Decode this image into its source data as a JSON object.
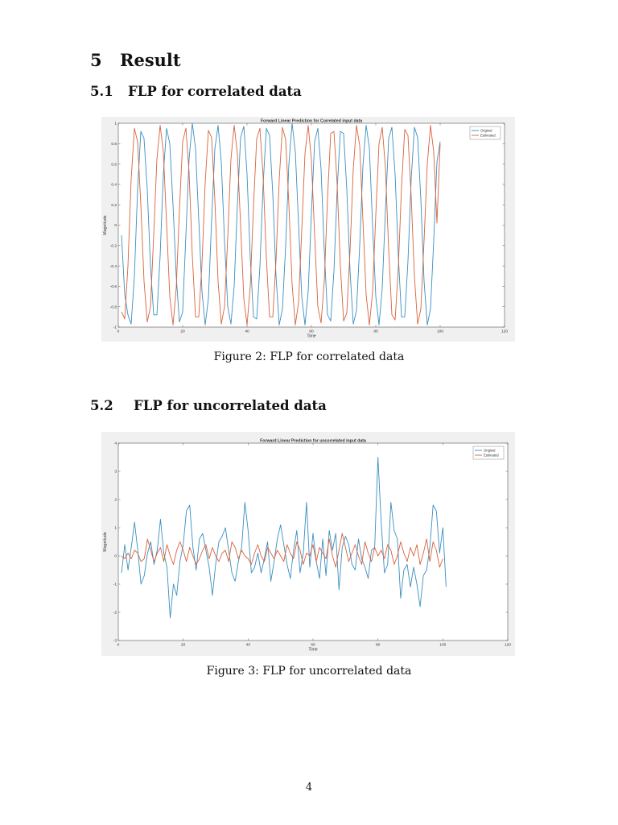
{
  "sections": {
    "main": {
      "number": "5",
      "title": "Result"
    },
    "sub1": {
      "number": "5.1",
      "title": "FLP for correlated data"
    },
    "sub2": {
      "number": "5.2",
      "title": "FLP for uncorrelated data"
    }
  },
  "figures": [
    {
      "caption": "Figure 2: FLP for correlated data"
    },
    {
      "caption": "Figure 3: FLP for uncorrelated data"
    }
  ],
  "page_number": "4",
  "chart_data": [
    {
      "type": "line",
      "title": "Forward Linear Prediction for Correlated input data",
      "xlabel": "Time",
      "ylabel": "Magnitude",
      "xlim": [
        0,
        120
      ],
      "ylim": [
        -1,
        1
      ],
      "xticks": [
        0,
        20,
        40,
        60,
        80,
        100,
        120
      ],
      "yticks": [
        -1,
        -0.8,
        -0.6,
        -0.4,
        -0.2,
        0,
        0.2,
        0.4,
        0.6,
        0.8,
        1
      ],
      "grid": false,
      "legend_position": "top-right",
      "series": [
        {
          "name": "Original",
          "color": "#3a8fc1",
          "x": [
            1,
            2,
            3,
            4,
            5,
            6,
            7,
            8,
            9,
            10,
            11,
            12,
            13,
            14,
            15,
            16,
            17,
            18,
            19,
            20,
            21,
            22,
            23,
            24,
            25,
            26,
            27,
            28,
            29,
            30,
            31,
            32,
            33,
            34,
            35,
            36,
            37,
            38,
            39,
            40,
            41,
            42,
            43,
            44,
            45,
            46,
            47,
            48,
            49,
            50,
            51,
            52,
            53,
            54,
            55,
            56,
            57,
            58,
            59,
            60,
            61,
            62,
            63,
            64,
            65,
            66,
            67,
            68,
            69,
            70,
            71,
            72,
            73,
            74,
            75,
            76,
            77,
            78,
            79,
            80,
            81,
            82,
            83,
            84,
            85,
            86,
            87,
            88,
            89,
            90,
            91,
            92,
            93,
            94,
            95,
            96,
            97,
            98,
            99,
            100
          ],
          "y": [
            -0.1,
            -0.68,
            -0.88,
            -0.97,
            -0.5,
            0.35,
            0.92,
            0.85,
            0.35,
            -0.4,
            -0.88,
            -0.88,
            -0.3,
            0.5,
            0.95,
            0.8,
            0.2,
            -0.5,
            -0.95,
            -0.85,
            -0.1,
            0.65,
            1.0,
            0.75,
            0.05,
            -0.65,
            -0.98,
            -0.72,
            0.05,
            0.75,
            0.98,
            0.62,
            -0.15,
            -0.8,
            -0.97,
            -0.6,
            0.2,
            0.86,
            0.97,
            0.5,
            -0.32,
            -0.9,
            -0.92,
            -0.4,
            0.4,
            0.95,
            0.88,
            0.3,
            -0.5,
            -0.98,
            -0.82,
            -0.2,
            0.6,
            1.0,
            0.72,
            0.02,
            -0.7,
            -0.98,
            -0.65,
            0.12,
            0.82,
            0.95,
            0.55,
            -0.25,
            -0.88,
            -0.94,
            -0.45,
            0.35,
            0.92,
            0.9,
            0.35,
            -0.45,
            -0.97,
            -0.84,
            -0.2,
            0.58,
            0.98,
            0.76,
            0.0,
            -0.7,
            -0.98,
            -0.62,
            0.15,
            0.85,
            0.96,
            0.5,
            -0.3,
            -0.9,
            -0.9,
            -0.35,
            0.45,
            0.96,
            0.86,
            0.25,
            -0.55,
            -0.98,
            -0.82,
            -0.15,
            0.62,
            0.82
          ]
        },
        {
          "name": "Estimated",
          "color": "#d9623b",
          "x": [
            1,
            2,
            3,
            4,
            5,
            6,
            7,
            8,
            9,
            10,
            11,
            12,
            13,
            14,
            15,
            16,
            17,
            18,
            19,
            20,
            21,
            22,
            23,
            24,
            25,
            26,
            27,
            28,
            29,
            30,
            31,
            32,
            33,
            34,
            35,
            36,
            37,
            38,
            39,
            40,
            41,
            42,
            43,
            44,
            45,
            46,
            47,
            48,
            49,
            50,
            51,
            52,
            53,
            54,
            55,
            56,
            57,
            58,
            59,
            60,
            61,
            62,
            63,
            64,
            65,
            66,
            67,
            68,
            69,
            70,
            71,
            72,
            73,
            74,
            75,
            76,
            77,
            78,
            79,
            80,
            81,
            82,
            83,
            84,
            85,
            86,
            87,
            88,
            89,
            90,
            91,
            92,
            93,
            94,
            95,
            96,
            97,
            98,
            99,
            100
          ],
          "y": [
            -0.85,
            -0.92,
            -0.4,
            0.45,
            0.95,
            0.82,
            0.2,
            -0.55,
            -0.95,
            -0.8,
            -0.1,
            0.65,
            0.98,
            0.72,
            0.02,
            -0.7,
            -0.98,
            -0.62,
            0.15,
            0.82,
            0.95,
            0.52,
            -0.3,
            -0.9,
            -0.9,
            -0.38,
            0.42,
            0.93,
            0.86,
            0.25,
            -0.55,
            -0.97,
            -0.8,
            -0.12,
            0.65,
            0.98,
            0.7,
            0.0,
            -0.72,
            -0.98,
            -0.6,
            0.18,
            0.85,
            0.95,
            0.48,
            -0.32,
            -0.9,
            -0.9,
            -0.35,
            0.45,
            0.96,
            0.84,
            0.2,
            -0.58,
            -0.98,
            -0.76,
            -0.05,
            0.7,
            0.98,
            0.64,
            -0.1,
            -0.8,
            -0.96,
            -0.55,
            0.26,
            0.9,
            0.92,
            0.4,
            -0.4,
            -0.94,
            -0.86,
            -0.25,
            0.55,
            0.98,
            0.78,
            0.05,
            -0.68,
            -0.98,
            -0.66,
            0.1,
            0.8,
            0.96,
            0.56,
            -0.24,
            -0.88,
            -0.93,
            -0.42,
            0.38,
            0.94,
            0.88,
            0.28,
            -0.5,
            -0.97,
            -0.82,
            -0.15,
            0.6,
            0.98,
            0.72,
            0.02,
            0.8
          ]
        }
      ]
    },
    {
      "type": "line",
      "title": "Forward Linear Prediction for uncorrelated input data",
      "xlabel": "Time",
      "ylabel": "Magnitude",
      "xlim": [
        0,
        120
      ],
      "ylim": [
        -3,
        4
      ],
      "xticks": [
        0,
        20,
        40,
        60,
        80,
        100,
        120
      ],
      "yticks": [
        -3,
        -2,
        -1,
        0,
        1,
        2,
        3,
        4
      ],
      "grid": false,
      "legend_position": "top-right",
      "series": [
        {
          "name": "Original",
          "color": "#3a8fc1",
          "x": [
            1,
            2,
            3,
            4,
            5,
            6,
            7,
            8,
            9,
            10,
            11,
            12,
            13,
            14,
            15,
            16,
            17,
            18,
            19,
            20,
            21,
            22,
            23,
            24,
            25,
            26,
            27,
            28,
            29,
            30,
            31,
            32,
            33,
            34,
            35,
            36,
            37,
            38,
            39,
            40,
            41,
            42,
            43,
            44,
            45,
            46,
            47,
            48,
            49,
            50,
            51,
            52,
            53,
            54,
            55,
            56,
            57,
            58,
            59,
            60,
            61,
            62,
            63,
            64,
            65,
            66,
            67,
            68,
            69,
            70,
            71,
            72,
            73,
            74,
            75,
            76,
            77,
            78,
            79,
            80,
            81,
            82,
            83,
            84,
            85,
            86,
            87,
            88,
            89,
            90,
            91,
            92,
            93,
            94,
            95,
            96,
            97,
            98,
            99,
            100,
            101
          ],
          "y": [
            -0.6,
            0.4,
            -0.5,
            0.3,
            1.2,
            0.2,
            -1.0,
            -0.7,
            0.1,
            0.5,
            -0.3,
            0.2,
            1.3,
            0.1,
            -0.4,
            -2.2,
            -1.0,
            -1.4,
            -0.2,
            0.4,
            1.6,
            1.8,
            0.3,
            -0.5,
            0.6,
            0.8,
            0.2,
            -0.4,
            -1.4,
            -0.3,
            0.5,
            0.7,
            1.0,
            0.2,
            -0.6,
            -0.9,
            -0.2,
            0.3,
            1.9,
            0.9,
            -0.6,
            -0.4,
            0.1,
            -0.6,
            -0.1,
            0.5,
            -0.9,
            -0.2,
            0.6,
            1.1,
            0.4,
            -0.3,
            -0.8,
            0.2,
            0.9,
            -0.6,
            0.1,
            1.9,
            -0.4,
            0.8,
            -0.2,
            -0.8,
            0.6,
            -0.7,
            0.9,
            0.2,
            0.8,
            -1.2,
            0.3,
            0.7,
            0.4,
            -0.3,
            -0.5,
            0.6,
            -0.1,
            -0.4,
            -0.8,
            0.2,
            0.3,
            3.5,
            1.2,
            -0.6,
            -0.3,
            1.9,
            0.9,
            0.6,
            -1.5,
            -0.5,
            -0.3,
            -1.1,
            -0.4,
            -1.0,
            -1.8,
            -0.7,
            -0.5,
            0.3,
            1.8,
            1.6,
            0.1,
            1.0,
            -1.1
          ]
        },
        {
          "name": "Estimated",
          "color": "#d9623b",
          "x": [
            1,
            2,
            3,
            4,
            5,
            6,
            7,
            8,
            9,
            10,
            11,
            12,
            13,
            14,
            15,
            16,
            17,
            18,
            19,
            20,
            21,
            22,
            23,
            24,
            25,
            26,
            27,
            28,
            29,
            30,
            31,
            32,
            33,
            34,
            35,
            36,
            37,
            38,
            39,
            40,
            41,
            42,
            43,
            44,
            45,
            46,
            47,
            48,
            49,
            50,
            51,
            52,
            53,
            54,
            55,
            56,
            57,
            58,
            59,
            60,
            61,
            62,
            63,
            64,
            65,
            66,
            67,
            68,
            69,
            70,
            71,
            72,
            73,
            74,
            75,
            76,
            77,
            78,
            79,
            80,
            81,
            82,
            83,
            84,
            85,
            86,
            87,
            88,
            89,
            90,
            91,
            92,
            93,
            94,
            95,
            96,
            97,
            98,
            99,
            100
          ],
          "y": [
            0.0,
            -0.1,
            0.1,
            -0.1,
            0.2,
            0.1,
            -0.2,
            -0.1,
            0.6,
            0.2,
            -0.2,
            0.1,
            0.3,
            -0.2,
            0.4,
            0.0,
            -0.3,
            0.2,
            0.5,
            0.2,
            -0.2,
            0.3,
            0.0,
            -0.3,
            -0.1,
            0.2,
            0.4,
            -0.1,
            0.3,
            0.0,
            -0.2,
            0.1,
            0.2,
            -0.2,
            0.5,
            0.3,
            -0.1,
            0.2,
            0.0,
            -0.1,
            -0.3,
            0.1,
            0.4,
            0.0,
            -0.2,
            0.3,
            0.1,
            -0.1,
            0.2,
            0.0,
            -0.2,
            0.4,
            0.1,
            -0.1,
            0.5,
            0.2,
            -0.3,
            0.1,
            0.0,
            0.4,
            -0.2,
            0.3,
            0.1,
            -0.1,
            0.6,
            0.0,
            -0.4,
            0.2,
            0.8,
            0.3,
            -0.2,
            0.1,
            0.4,
            0.0,
            -0.3,
            0.5,
            0.1,
            -0.2,
            0.3,
            0.0,
            0.2,
            -0.1,
            0.4,
            0.2,
            -0.3,
            0.0,
            0.5,
            0.1,
            -0.2,
            0.3,
            0.0,
            0.4,
            -0.3,
            0.1,
            0.6,
            -0.2,
            0.5,
            0.2,
            -0.4,
            -0.1
          ]
        }
      ]
    }
  ]
}
